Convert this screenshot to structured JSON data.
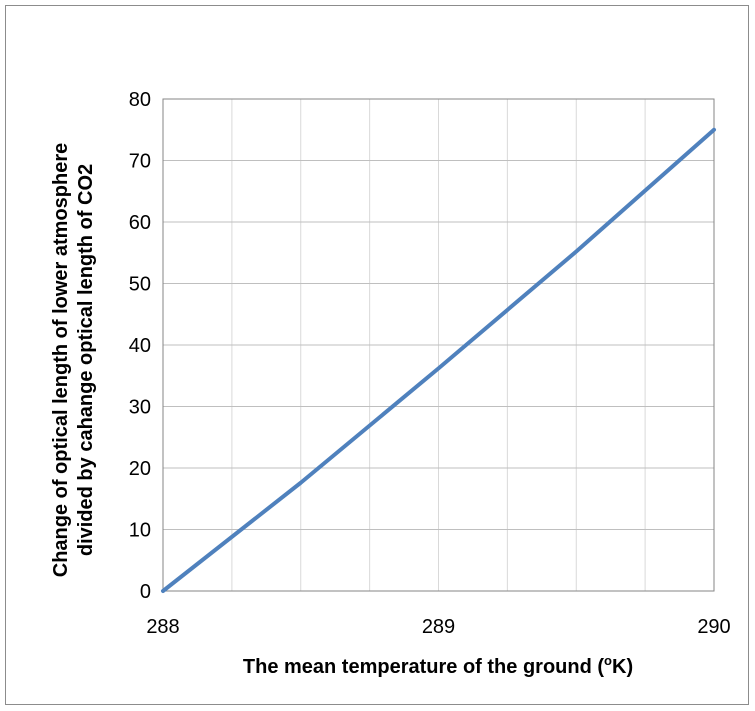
{
  "chart_data": {
    "type": "line",
    "title": "",
    "xlabel": "The mean temperature of the ground (",
    "xlabel_sup": "o",
    "xlabel_tail": "K)",
    "ylabel_line1": "Change of optical length of lower atmosphere",
    "ylabel_line2": "divided by cahange optical length of CO2",
    "xlim": [
      288,
      290
    ],
    "ylim": [
      0,
      80
    ],
    "x_ticks": [
      "288",
      "289",
      "290"
    ],
    "y_ticks": [
      "0",
      "10",
      "20",
      "30",
      "40",
      "50",
      "60",
      "70",
      "80"
    ],
    "grid": true,
    "legend": "none",
    "series": [
      {
        "x": [
          288,
          288.5,
          289,
          289.5,
          290
        ],
        "y": [
          0,
          17.6,
          36.2,
          55.2,
          75
        ],
        "color": "#4F81BD"
      }
    ]
  }
}
